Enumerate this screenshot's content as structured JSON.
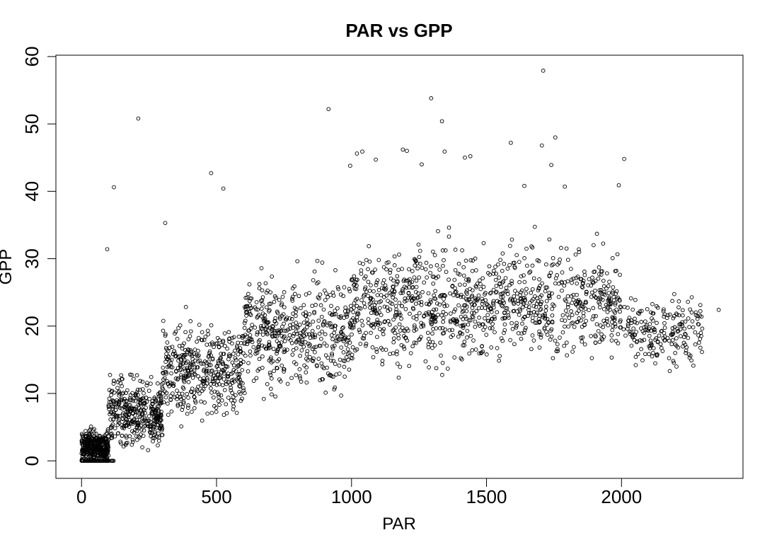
{
  "chart_data": {
    "type": "scatter",
    "title": "PAR vs GPP",
    "xlabel": "PAR",
    "ylabel": "GPP",
    "xlim": [
      -95,
      2450
    ],
    "ylim": [
      -2.6,
      60.2
    ],
    "xticks": [
      0,
      500,
      1000,
      1500,
      2000
    ],
    "yticks": [
      0,
      10,
      20,
      30,
      40,
      50,
      60
    ],
    "xtick_labels": [
      "0",
      "500",
      "1000",
      "1500",
      "2000"
    ],
    "ytick_labels": [
      "0",
      "10",
      "20",
      "30",
      "40",
      "50",
      "60"
    ],
    "grid": false,
    "legend": "none",
    "marker": "open-circle",
    "point_color": "#000000",
    "outliers": [
      {
        "x": 1710,
        "y": 57.9
      },
      {
        "x": 1295,
        "y": 53.8
      },
      {
        "x": 210,
        "y": 50.8
      },
      {
        "x": 915,
        "y": 52.2
      },
      {
        "x": 1335,
        "y": 50.4
      },
      {
        "x": 1755,
        "y": 48.0
      },
      {
        "x": 1590,
        "y": 47.2
      },
      {
        "x": 1705,
        "y": 46.8
      },
      {
        "x": 1190,
        "y": 46.2
      },
      {
        "x": 1040,
        "y": 45.9
      },
      {
        "x": 1020,
        "y": 45.6
      },
      {
        "x": 1345,
        "y": 45.9
      },
      {
        "x": 2010,
        "y": 44.8
      },
      {
        "x": 1420,
        "y": 45.0
      },
      {
        "x": 1440,
        "y": 45.2
      },
      {
        "x": 1260,
        "y": 44.0
      },
      {
        "x": 1090,
        "y": 44.7
      },
      {
        "x": 995,
        "y": 43.8
      },
      {
        "x": 1740,
        "y": 43.9
      },
      {
        "x": 480,
        "y": 42.7
      },
      {
        "x": 120,
        "y": 40.6
      },
      {
        "x": 525,
        "y": 40.4
      },
      {
        "x": 2360,
        "y": 22.4
      },
      {
        "x": 95,
        "y": 31.4
      },
      {
        "x": 310,
        "y": 35.3
      },
      {
        "x": 1640,
        "y": 40.8
      },
      {
        "x": 1990,
        "y": 40.9
      },
      {
        "x": 1205,
        "y": 46.0
      },
      {
        "x": 1790,
        "y": 40.7
      }
    ],
    "clusters": [
      {
        "x_min": 0,
        "x_max": 100,
        "y_center": 2.0,
        "y_spread": 4.0,
        "count": 380
      },
      {
        "x_min": 100,
        "x_max": 300,
        "y_center": 7.0,
        "y_spread": 8.0,
        "count": 380
      },
      {
        "x_min": 300,
        "x_max": 600,
        "y_center": 13.5,
        "y_spread": 11.0,
        "count": 420
      },
      {
        "x_min": 600,
        "x_max": 1000,
        "y_center": 19.0,
        "y_spread": 13.0,
        "count": 480
      },
      {
        "x_min": 1000,
        "x_max": 1500,
        "y_center": 23.0,
        "y_spread": 14.0,
        "count": 560
      },
      {
        "x_min": 1500,
        "x_max": 2000,
        "y_center": 23.5,
        "y_spread": 13.0,
        "count": 500
      },
      {
        "x_min": 2000,
        "x_max": 2300,
        "y_center": 19.5,
        "y_spread": 8.0,
        "count": 200
      }
    ],
    "zero_points": {
      "x_min": 0,
      "x_max": 120,
      "y": 0,
      "count": 45
    }
  }
}
